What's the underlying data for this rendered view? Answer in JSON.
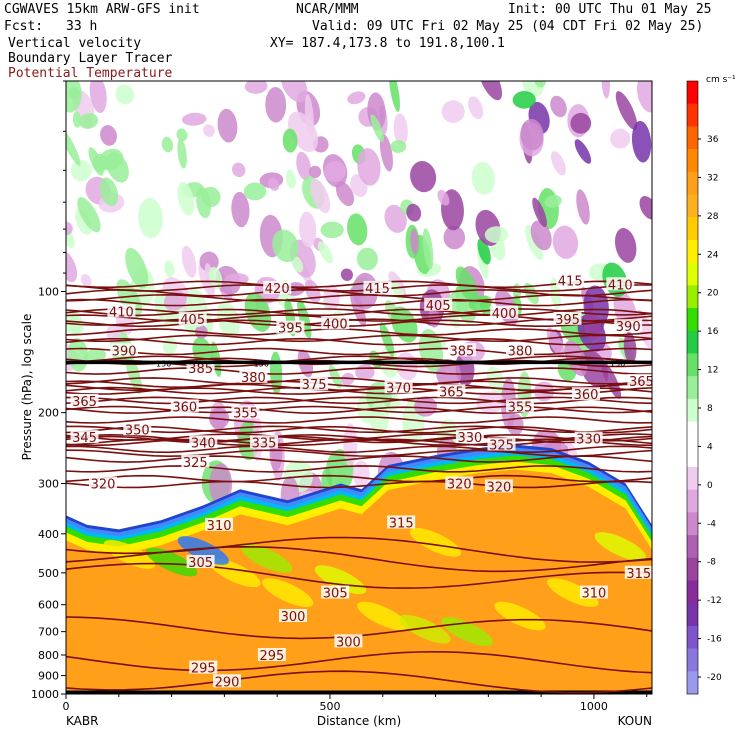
{
  "header": {
    "model": "CGWAVES 15km ARW-GFS init",
    "org": "NCAR/MMM",
    "init": "Init: 00 UTC Thu 01 May 25",
    "fcst_label": "Fcst:",
    "fcst_value": "33 h",
    "valid": "Valid: 09 UTC Fri 02 May 25 (04 CDT Fri 02 May 25)",
    "field1": "Vertical velocity",
    "field2": "Boundary Layer Tracer",
    "field3": "Potential Temperature",
    "xy": "XY= 187.4,173.8 to 191.8,100.1"
  },
  "colors": {
    "contour": "#7a0f0f",
    "field3_text": "#8b1a1a"
  },
  "chart_data": {
    "type": "heatmap",
    "xlabel": "Distance (km)",
    "ylabel": "Pressure (hPa), log scale",
    "xlim": [
      0,
      1110
    ],
    "ylim": [
      1000,
      30
    ],
    "yscale": "log",
    "xticks": [
      0,
      500,
      1000
    ],
    "yticks": [
      100,
      200,
      300,
      400,
      500,
      600,
      700,
      800,
      900,
      1000
    ],
    "endpoints": {
      "left": "KABR",
      "right": "KOUN"
    },
    "colorbar": {
      "unit": "cm s⁻¹",
      "labels": [
        "36",
        "32",
        "28",
        "24",
        "20",
        "16",
        "12",
        "8",
        "4",
        "0",
        "-4",
        "-8",
        "-12",
        "-16",
        "-20"
      ],
      "colors": [
        "#ff0000",
        "#ff3300",
        "#ff6600",
        "#ff8800",
        "#ff9f1a",
        "#ffb020",
        "#ffcc00",
        "#ffee00",
        "#ddff00",
        "#99ee00",
        "#33dd00",
        "#22cc44",
        "#66e066",
        "#99ee99",
        "#ccffcc",
        "#ffffff",
        "#ffffff",
        "#f0ccf0",
        "#e0a8e0",
        "#cc88cc",
        "#b060b0",
        "#9a44a0",
        "#882c99",
        "#7733aa",
        "#7f55cc",
        "#8877dd",
        "#9999ee"
      ]
    },
    "theta_contours": [
      {
        "level": 290,
        "label": "290",
        "lx": 305,
        "lp": 930
      },
      {
        "level": 295,
        "label": "295",
        "lx": 260,
        "lp": 860
      },
      {
        "level": 295,
        "label": "295",
        "lx": 390,
        "lp": 800
      },
      {
        "level": 300,
        "label": "300",
        "lx": 430,
        "lp": 640
      },
      {
        "level": 300,
        "label": "300",
        "lx": 535,
        "lp": 740
      },
      {
        "level": 305,
        "label": "305",
        "lx": 255,
        "lp": 470
      },
      {
        "level": 305,
        "label": "305",
        "lx": 510,
        "lp": 560
      },
      {
        "level": 310,
        "label": "310",
        "lx": 290,
        "lp": 380
      },
      {
        "level": 310,
        "label": "310",
        "lx": 1000,
        "lp": 560
      },
      {
        "level": 315,
        "label": "315",
        "lx": 635,
        "lp": 375
      },
      {
        "level": 315,
        "label": "315",
        "lx": 1085,
        "lp": 500
      },
      {
        "level": 320,
        "label": "320",
        "lx": 70,
        "lp": 300
      },
      {
        "level": 320,
        "label": "320",
        "lx": 745,
        "lp": 300
      },
      {
        "level": 320,
        "label": "320",
        "lx": 820,
        "lp": 305
      },
      {
        "level": 325,
        "label": "325",
        "lx": 245,
        "lp": 265
      },
      {
        "level": 325,
        "label": "325",
        "lx": 825,
        "lp": 240
      },
      {
        "level": 330,
        "label": "330",
        "lx": 765,
        "lp": 230
      },
      {
        "level": 330,
        "label": "330",
        "lx": 990,
        "lp": 232
      },
      {
        "level": 335,
        "label": "335",
        "lx": 375,
        "lp": 237
      },
      {
        "level": 340,
        "label": "340",
        "lx": 260,
        "lp": 237
      },
      {
        "level": 345,
        "label": "345",
        "lx": 35,
        "lp": 230
      },
      {
        "level": 350,
        "label": "350",
        "lx": 135,
        "lp": 220
      },
      {
        "level": 355,
        "label": "355",
        "lx": 340,
        "lp": 200
      },
      {
        "level": 355,
        "label": "355",
        "lx": 860,
        "lp": 193
      },
      {
        "level": 360,
        "label": "360",
        "lx": 225,
        "lp": 193
      },
      {
        "level": 360,
        "label": "360",
        "lx": 985,
        "lp": 180
      },
      {
        "level": 365,
        "label": "365",
        "lx": 35,
        "lp": 187
      },
      {
        "level": 365,
        "label": "365",
        "lx": 730,
        "lp": 177
      },
      {
        "level": 365,
        "label": "365",
        "lx": 1090,
        "lp": 167
      },
      {
        "level": 370,
        "label": "370",
        "lx": 630,
        "lp": 173
      },
      {
        "level": 375,
        "label": "375",
        "lx": 470,
        "lp": 170
      },
      {
        "level": 380,
        "label": "380",
        "lx": 355,
        "lp": 163
      },
      {
        "level": 380,
        "label": "380",
        "lx": 860,
        "lp": 140
      },
      {
        "level": 385,
        "label": "385",
        "lx": 255,
        "lp": 155
      },
      {
        "level": 385,
        "label": "385",
        "lx": 750,
        "lp": 140
      },
      {
        "level": 390,
        "label": "390",
        "lx": 110,
        "lp": 140
      },
      {
        "level": 390,
        "label": "390",
        "lx": 1065,
        "lp": 122
      },
      {
        "level": 395,
        "label": "395",
        "lx": 425,
        "lp": 123
      },
      {
        "level": 395,
        "label": "395",
        "lx": 950,
        "lp": 117
      },
      {
        "level": 400,
        "label": "400",
        "lx": 510,
        "lp": 120
      },
      {
        "level": 400,
        "label": "400",
        "lx": 830,
        "lp": 113
      },
      {
        "level": 405,
        "label": "405",
        "lx": 240,
        "lp": 117
      },
      {
        "level": 405,
        "label": "405",
        "lx": 705,
        "lp": 108
      },
      {
        "level": 410,
        "label": "410",
        "lx": 105,
        "lp": 112
      },
      {
        "level": 410,
        "label": "410",
        "lx": 1050,
        "lp": 96
      },
      {
        "level": 415,
        "label": "415",
        "lx": 590,
        "lp": 98
      },
      {
        "level": 415,
        "label": "415",
        "lx": 955,
        "lp": 94
      },
      {
        "level": 420,
        "label": "420",
        "lx": 400,
        "lp": 98
      }
    ],
    "tracer_line": {
      "p": 150,
      "labels": [
        {
          "label": "150",
          "lx": 185
        },
        {
          "label": "150",
          "lx": 370
        },
        {
          "label": "150",
          "lx": 1045
        }
      ]
    }
  }
}
